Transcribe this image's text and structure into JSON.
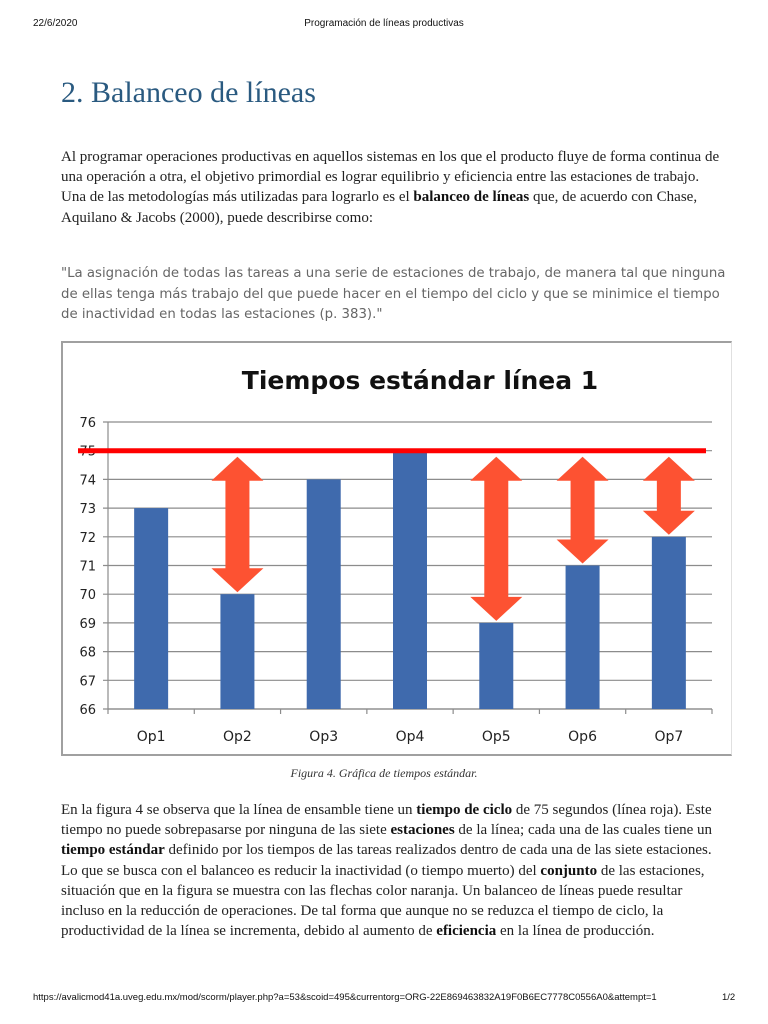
{
  "print_header": {
    "date": "22/6/2020",
    "title": "Programación de líneas productivas"
  },
  "heading": "2. Balanceo de líneas",
  "intro": {
    "part1": "Al programar operaciones productivas en aquellos sistemas en los que el producto fluye de forma continua de una operación a otra, el objetivo primordial es lograr equilibrio y eficiencia entre las estaciones de trabajo. Una de las metodologías más utilizadas para lograrlo es el ",
    "bold1": "balanceo de líneas",
    "part2": " que, de acuerdo con Chase, Aquilano & Jacobs (2000), puede describirse como:"
  },
  "quote": "\"La asignación de todas las tareas a una serie de estaciones de trabajo, de manera tal que ninguna de ellas tenga más trabajo del que puede hacer en el tiempo del ciclo y que se minimice el tiempo de inactividad en todas las estaciones (p. 383).\"",
  "chart_data": {
    "type": "bar",
    "title": "Tiempos estándar línea 1",
    "categories": [
      "Op1",
      "Op2",
      "Op3",
      "Op4",
      "Op5",
      "Op6",
      "Op7"
    ],
    "values": [
      73,
      70,
      74,
      75,
      69,
      71,
      72
    ],
    "xlabel": "",
    "ylabel": "",
    "ylim": [
      66,
      76
    ],
    "yticks": [
      66,
      67,
      68,
      69,
      70,
      71,
      72,
      73,
      74,
      75,
      76
    ],
    "grid": true,
    "bar_color": "#3f6aad",
    "reference_line": {
      "value": 75,
      "color": "#ff0000",
      "label": "tiempo de ciclo"
    },
    "arrows": {
      "color": "#fd5232",
      "categories": [
        "Op2",
        "Op5",
        "Op6",
        "Op7"
      ],
      "from": 75
    }
  },
  "caption": "Figura 4. Gráfica de tiempos estándar.",
  "body": {
    "s1": "En la figura 4 se observa que la línea de ensamble tiene un ",
    "b1": "tiempo de ciclo",
    "s2": " de 75 segundos (línea roja). Este tiempo no puede sobrepasarse por ninguna de las siete ",
    "b2": "estaciones",
    "s3": " de la línea; cada una de las cuales tiene un ",
    "b3": "tiempo estándar",
    "s4": " definido por los tiempos de las tareas realizados dentro de cada una de las siete estaciones. Lo que se busca con el balanceo es reducir la inactividad (o tiempo muerto) del ",
    "b4": "conjunto",
    "s5": " de las estaciones, situación que en la figura se muestra con las flechas color naranja. Un balanceo de líneas puede resultar incluso en la reducción de operaciones. De tal forma que aunque no se reduzca el tiempo de ciclo, la productividad de la línea se incrementa, debido al aumento de ",
    "b5": "eficiencia",
    "s6": " en la línea de producción."
  },
  "print_footer": {
    "url": "https://avalicmod41a.uveg.edu.mx/mod/scorm/player.php?a=53&scoid=495&currentorg=ORG-22E869463832A19F0B6EC7778C0556A0&attempt=1",
    "page": "1/2"
  }
}
